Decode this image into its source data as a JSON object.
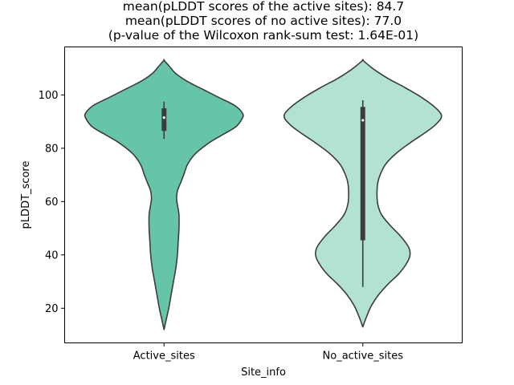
{
  "chart_data": {
    "type": "violin",
    "title_lines": [
      "mean(pLDDT scores of the active sites): 84.7",
      "mean(pLDDT scores of no active sites): 77.0",
      "(p-value of the Wilcoxon rank-sum test: 1.64E-01)"
    ],
    "xlabel": "Site_info",
    "ylabel": "pLDDT_score",
    "ylim": [
      7,
      118
    ],
    "yticks": [
      20,
      40,
      60,
      80,
      100
    ],
    "categories": [
      "Active_sites",
      "No_active_sites"
    ],
    "grid": false,
    "violins": [
      {
        "category": "Active_sites",
        "color": "#66c5a8",
        "density_profile": [
          [
            12,
            0.0
          ],
          [
            16,
            0.03
          ],
          [
            20,
            0.06
          ],
          [
            25,
            0.09
          ],
          [
            30,
            0.12
          ],
          [
            35,
            0.15
          ],
          [
            40,
            0.17
          ],
          [
            45,
            0.18
          ],
          [
            50,
            0.19
          ],
          [
            55,
            0.19
          ],
          [
            58,
            0.175
          ],
          [
            61,
            0.16
          ],
          [
            64,
            0.17
          ],
          [
            67,
            0.21
          ],
          [
            70,
            0.25
          ],
          [
            74,
            0.3
          ],
          [
            78,
            0.4
          ],
          [
            82,
            0.57
          ],
          [
            85,
            0.74
          ],
          [
            88,
            0.91
          ],
          [
            91,
            0.99
          ],
          [
            93,
            1.0
          ],
          [
            96,
            0.9
          ],
          [
            99,
            0.7
          ],
          [
            102,
            0.5
          ],
          [
            105,
            0.3
          ],
          [
            108,
            0.15
          ],
          [
            111,
            0.06
          ],
          [
            113,
            0.0
          ]
        ],
        "box": {
          "whisker_low": 83.5,
          "q1": 86.5,
          "median": 91.5,
          "q3": 95.0,
          "whisker_high": 97.5
        }
      },
      {
        "category": "No_active_sites",
        "color": "#b2e2d3",
        "density_profile": [
          [
            13,
            0.0
          ],
          [
            17,
            0.05
          ],
          [
            21,
            0.11
          ],
          [
            25,
            0.2
          ],
          [
            29,
            0.32
          ],
          [
            33,
            0.46
          ],
          [
            37,
            0.56
          ],
          [
            40,
            0.6
          ],
          [
            43,
            0.58
          ],
          [
            47,
            0.48
          ],
          [
            51,
            0.35
          ],
          [
            55,
            0.24
          ],
          [
            59,
            0.19
          ],
          [
            63,
            0.18
          ],
          [
            67,
            0.19
          ],
          [
            70,
            0.22
          ],
          [
            74,
            0.29
          ],
          [
            78,
            0.42
          ],
          [
            82,
            0.6
          ],
          [
            86,
            0.8
          ],
          [
            89,
            0.93
          ],
          [
            92,
            1.0
          ],
          [
            95,
            0.93
          ],
          [
            99,
            0.75
          ],
          [
            103,
            0.52
          ],
          [
            106,
            0.33
          ],
          [
            109,
            0.17
          ],
          [
            111,
            0.08
          ],
          [
            113,
            0.0
          ]
        ],
        "box": {
          "whisker_low": 28,
          "q1": 45.5,
          "median": 90.5,
          "q3": 95.5,
          "whisker_high": 98
        }
      }
    ],
    "colors": {
      "outline": "#3c3c3c",
      "box": "#3c3c3c",
      "median_dot": "#ffffff"
    }
  }
}
